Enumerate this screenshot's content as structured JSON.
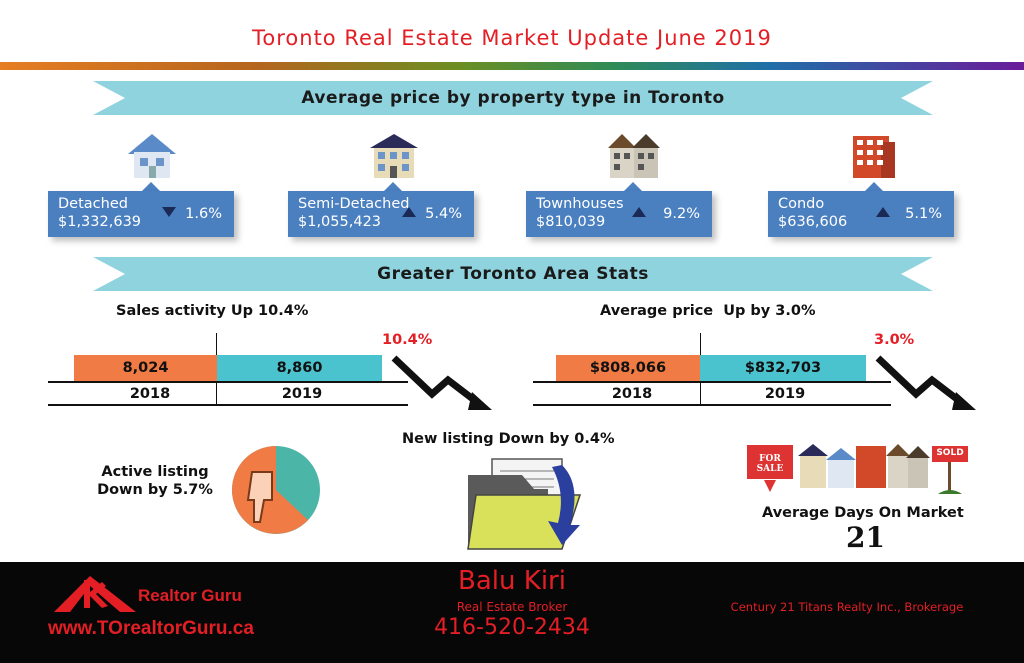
{
  "title": "Toronto Real Estate Market Update June 2019",
  "banners": {
    "property_type": "Average price by property type in Toronto",
    "gta": "Greater Toronto Area Stats"
  },
  "property_types": [
    {
      "name": "Detached",
      "price": "$1,332,639",
      "change": "1.6%",
      "direction": "down",
      "icon": "detached-house-icon"
    },
    {
      "name": "Semi-Detached",
      "price": "$1,055,423",
      "change": "5.4%",
      "direction": "up",
      "icon": "semi-detached-house-icon"
    },
    {
      "name": "Townhouses",
      "price": "$810,039",
      "change": "9.2%",
      "direction": "up",
      "icon": "townhouse-icon"
    },
    {
      "name": "Condo",
      "price": "$636,606",
      "change": "5.1%",
      "direction": "up",
      "icon": "condo-building-icon"
    }
  ],
  "sales": {
    "heading": "Sales activity Up 10.4%",
    "val_2018": "8,024",
    "val_2019": "8,860",
    "year_2018": "2018",
    "year_2019": "2019",
    "pct": "10.4%"
  },
  "avg_price": {
    "heading": "Average price  Up by 3.0%",
    "val_2018": "$808,066",
    "val_2019": "$832,703",
    "year_2018": "2018",
    "year_2019": "2019",
    "pct": "3.0%"
  },
  "active_listing": {
    "line1": "Active listing",
    "line2": "Down by 5.7%"
  },
  "new_listing": {
    "text": "New listing Down by 0.4%"
  },
  "days_on_market": {
    "label": "Average Days On Market",
    "value": "21",
    "for_sale_sign": "FOR SALE",
    "sold_sign": "SOLD"
  },
  "footer": {
    "brand": "Realtor Guru",
    "website": "www.TOrealtorGuru.ca",
    "agent_name": "Balu Kiri",
    "agent_title": "Real Estate Broker",
    "phone": "416-520-2434",
    "brokerage": "Century 21 Titans Realty Inc., Brokerage"
  },
  "colors": {
    "accent_red": "#e31e24",
    "banner_teal": "#8fd3df",
    "card_blue": "#4a7fc0",
    "bar_orange": "#f07b45",
    "bar_teal": "#4bc3cf"
  }
}
